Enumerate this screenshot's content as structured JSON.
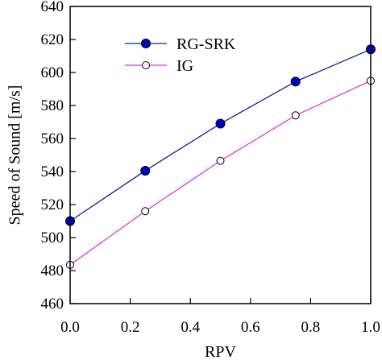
{
  "chart_data": {
    "type": "line",
    "xlabel": "RPV",
    "ylabel": "Speed of Sound [m/s]",
    "xlim": [
      0.0,
      1.0
    ],
    "ylim": [
      460,
      640
    ],
    "x_ticks": [
      "0.0",
      "0.2",
      "0.4",
      "0.6",
      "0.8",
      "1.0"
    ],
    "y_ticks": [
      "460",
      "480",
      "500",
      "520",
      "540",
      "560",
      "580",
      "600",
      "620",
      "640"
    ],
    "grid": false,
    "legend_position": "top-center",
    "x": [
      0.0,
      0.25,
      0.5,
      0.75,
      1.0
    ],
    "series": [
      {
        "name": "RG-SRK",
        "values": [
          510,
          540.5,
          569,
          594.5,
          614
        ],
        "line_color": "#1a1a9a",
        "marker_fill": "#0000cc",
        "marker_stroke": "#000000"
      },
      {
        "name": "IG",
        "values": [
          483.5,
          516,
          546.5,
          574,
          595
        ],
        "line_color": "#e633e6",
        "marker_fill": "#ffffff",
        "marker_stroke": "#000000"
      }
    ]
  }
}
